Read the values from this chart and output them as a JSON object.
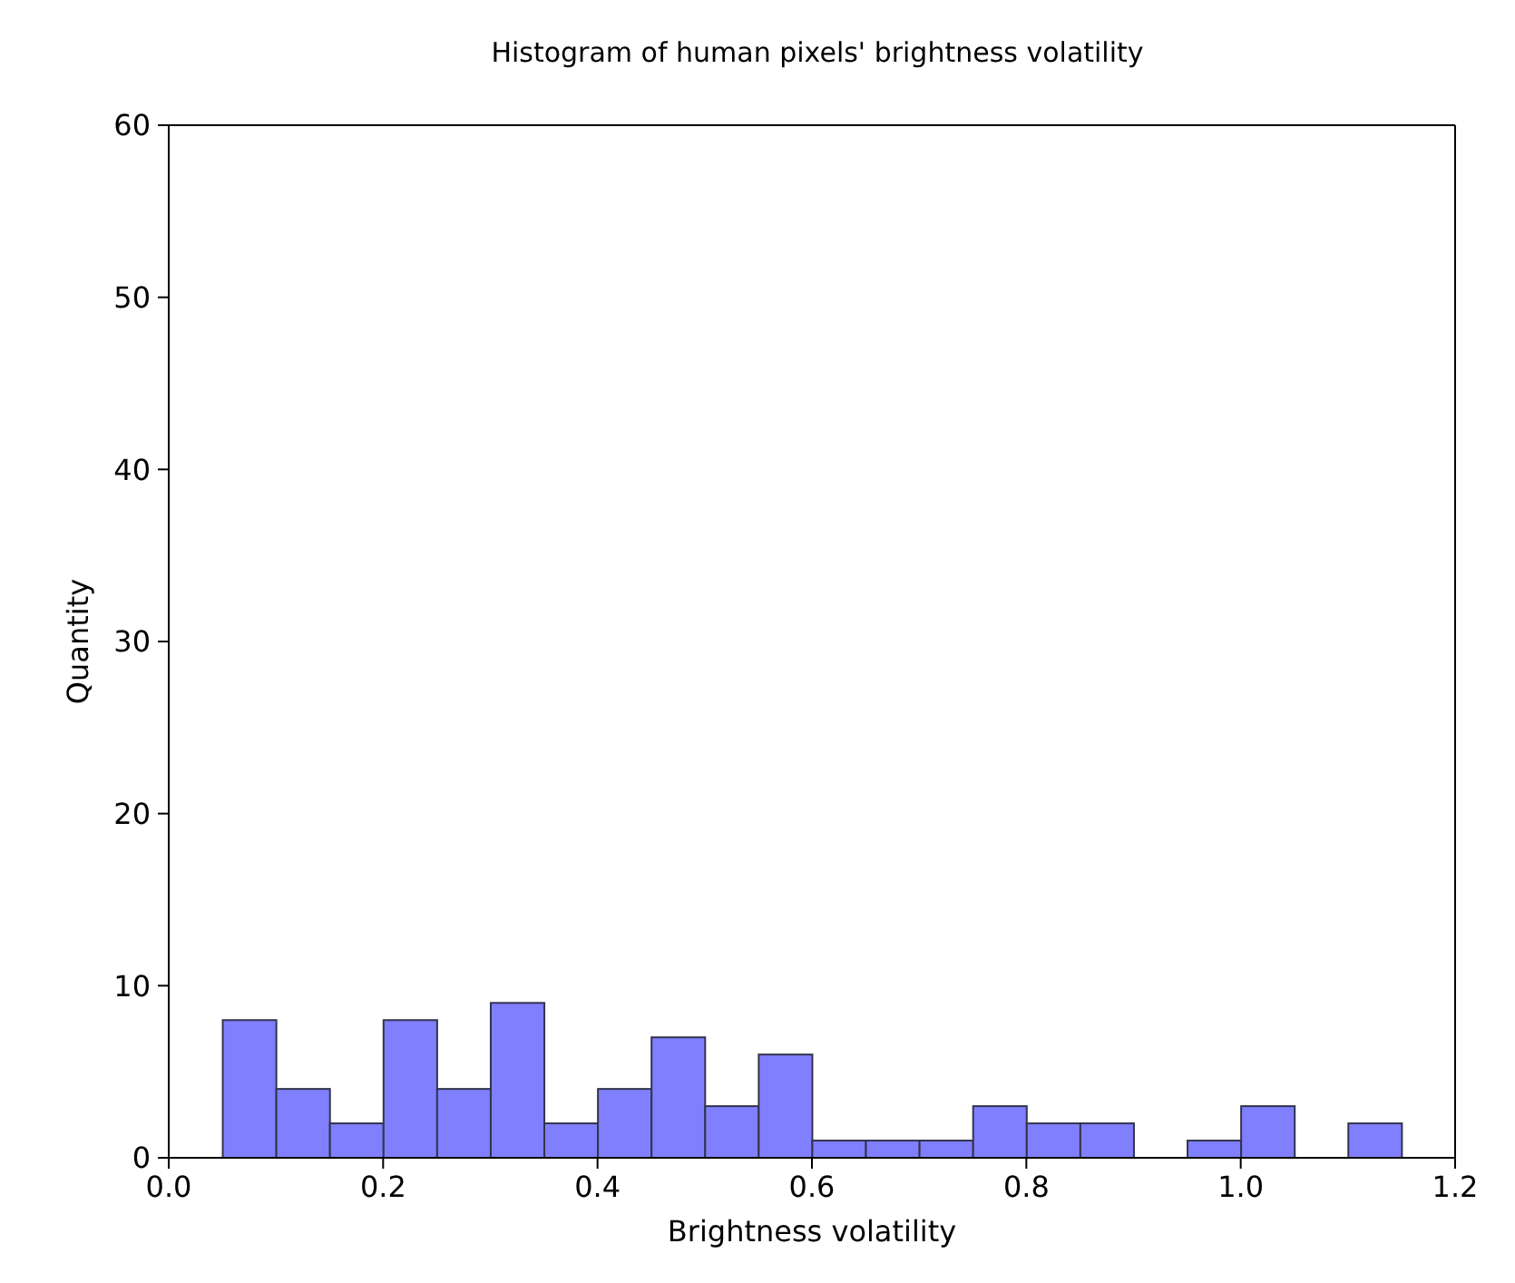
{
  "chart_data": {
    "type": "histogram",
    "title": "Histogram of human pixels' brightness volatility",
    "xlabel": "Brightness volatility",
    "ylabel": "Quantity",
    "bins": [
      0.05,
      0.1,
      0.15,
      0.2,
      0.25,
      0.3,
      0.35,
      0.4,
      0.45,
      0.5,
      0.55,
      0.6,
      0.65,
      0.7,
      0.75,
      0.8,
      0.85,
      0.9,
      0.95,
      1.0,
      1.05,
      1.1,
      1.15
    ],
    "values": [
      8,
      4,
      2,
      8,
      4,
      9,
      2,
      4,
      7,
      3,
      6,
      1,
      1,
      1,
      3,
      2,
      2,
      0,
      1,
      3,
      0,
      2
    ],
    "color": "#8080ff",
    "xlim": [
      0,
      1.2
    ],
    "xticks": [
      {
        "value": 0,
        "label": "0.0"
      },
      {
        "value": 0.2,
        "label": "0.2"
      },
      {
        "value": 0.4,
        "label": "0.4"
      },
      {
        "value": 0.6,
        "label": "0.6"
      },
      {
        "value": 0.8,
        "label": "0.8"
      },
      {
        "value": 1,
        "label": "1.0"
      },
      {
        "value": 1.2,
        "label": "1.2"
      }
    ],
    "ylim": [
      0,
      60
    ],
    "yticks": [
      0,
      10,
      20,
      30,
      40,
      50,
      60
    ]
  }
}
